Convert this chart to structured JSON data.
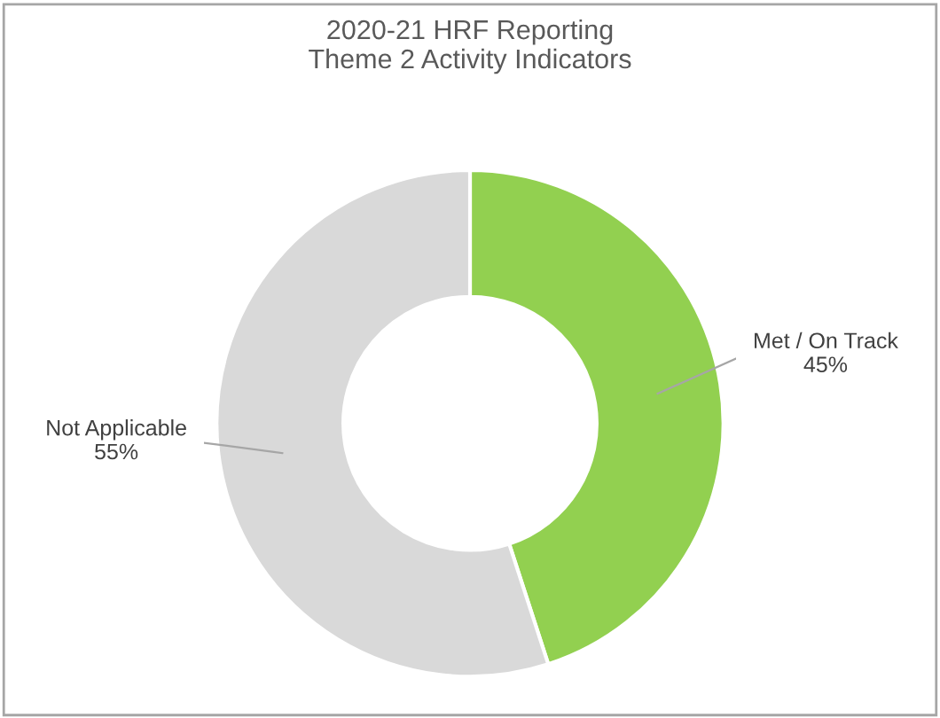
{
  "chart_data": {
    "type": "donut",
    "title": "2020-21 HRF Reporting\nTheme 2 Activity Indicators",
    "categories": [
      "Met / On Track",
      "Not Applicable"
    ],
    "values": [
      45,
      55
    ],
    "colors": [
      "#92d050",
      "#d9d9d9"
    ],
    "value_labels": [
      "45%",
      "55%"
    ],
    "legend": false
  }
}
